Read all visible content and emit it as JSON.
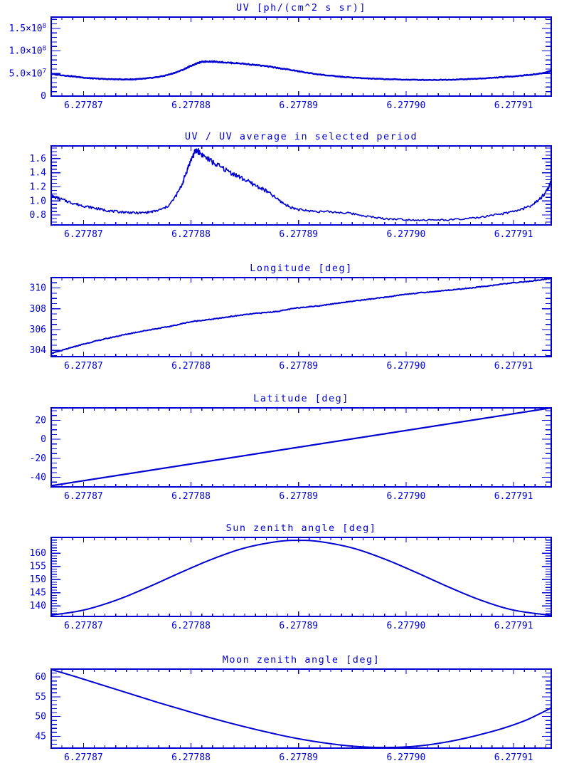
{
  "style": {
    "accent": "#0000d2",
    "background": "#ffffff"
  },
  "chart_data": [
    {
      "type": "line",
      "id": "uv",
      "title": "UV [ph/(cm^2 s sr)]",
      "xlabel": "",
      "ylabel": "",
      "grid": false,
      "legend": "none",
      "xlim": [
        6.277867,
        6.2779135
      ],
      "ylim": [
        0,
        175000000
      ],
      "x_tick_labels": [
        "6.27787",
        "6.27788",
        "6.27789",
        "6.27790",
        "6.27791"
      ],
      "x_tick_values": [
        6.27787,
        6.27788,
        6.27789,
        6.2779,
        6.27791
      ],
      "x_minor_step": 1e-06,
      "y_tick_labels": [
        "0",
        "5.0×10^7",
        "1.0×10^8",
        "1.5×10^8"
      ],
      "y_tick_values": [
        0,
        50000000,
        100000000,
        150000000
      ],
      "y_minor_step": 10000000,
      "line_width": 2.4,
      "noise": 1100000,
      "noise_prop": true,
      "seed": 3,
      "series": [
        {
          "name": "UV",
          "points": [
            [
              6.277867,
              49000000
            ],
            [
              6.2778685,
              45000000
            ],
            [
              6.27787,
              41000000
            ],
            [
              6.277871,
              39000000
            ],
            [
              6.2778725,
              37500000
            ],
            [
              6.277874,
              37000000
            ],
            [
              6.277875,
              37500000
            ],
            [
              6.277876,
              39500000
            ],
            [
              6.2778775,
              45000000
            ],
            [
              6.277879,
              56000000
            ],
            [
              6.27788,
              67000000
            ],
            [
              6.277881,
              75500000
            ],
            [
              6.277882,
              76500000
            ],
            [
              6.2778835,
              74000000
            ],
            [
              6.277885,
              71500000
            ],
            [
              6.277887,
              66000000
            ],
            [
              6.277889,
              59000000
            ],
            [
              6.277891,
              51000000
            ],
            [
              6.277893,
              45000000
            ],
            [
              6.277895,
              41000000
            ],
            [
              6.277897,
              38500000
            ],
            [
              6.277899,
              37000000
            ],
            [
              6.277901,
              36000000
            ],
            [
              6.277903,
              36000000
            ],
            [
              6.277905,
              37000000
            ],
            [
              6.277907,
              39000000
            ],
            [
              6.277909,
              42000000
            ],
            [
              6.277911,
              46000000
            ],
            [
              6.2779125,
              50000000
            ],
            [
              6.2779135,
              56000000
            ]
          ]
        }
      ]
    },
    {
      "type": "line",
      "id": "uv_ratio",
      "title": "UV / UV average in selected period",
      "xlabel": "",
      "ylabel": "",
      "grid": false,
      "legend": "none",
      "xlim": [
        6.277867,
        6.2779135
      ],
      "ylim": [
        0.66,
        1.78
      ],
      "x_tick_labels": [
        "6.27787",
        "6.27788",
        "6.27789",
        "6.27790",
        "6.27791"
      ],
      "x_tick_values": [
        6.27787,
        6.27788,
        6.27789,
        6.2779,
        6.27791
      ],
      "x_minor_step": 1e-06,
      "y_tick_labels": [
        "0.8",
        "1.0",
        "1.2",
        "1.4",
        "1.6"
      ],
      "y_tick_values": [
        0.8,
        1.0,
        1.2,
        1.4,
        1.6
      ],
      "y_minor_step": 0.05,
      "line_width": 1.6,
      "noise": 0.024,
      "noise_prop": true,
      "seed": 7,
      "series": [
        {
          "name": "UV ratio",
          "points": [
            [
              6.277867,
              1.07
            ],
            [
              6.277868,
              1.02
            ],
            [
              6.277869,
              0.97
            ],
            [
              6.27787,
              0.93
            ],
            [
              6.277871,
              0.9
            ],
            [
              6.277872,
              0.87
            ],
            [
              6.277873,
              0.85
            ],
            [
              6.277874,
              0.84
            ],
            [
              6.277875,
              0.83
            ],
            [
              6.277876,
              0.84
            ],
            [
              6.277877,
              0.87
            ],
            [
              6.277878,
              0.95
            ],
            [
              6.277879,
              1.18
            ],
            [
              6.2778795,
              1.38
            ],
            [
              6.27788,
              1.58
            ],
            [
              6.2778805,
              1.71
            ],
            [
              6.277881,
              1.66
            ],
            [
              6.277882,
              1.55
            ],
            [
              6.277883,
              1.46
            ],
            [
              6.277884,
              1.38
            ],
            [
              6.277885,
              1.3
            ],
            [
              6.277886,
              1.22
            ],
            [
              6.277887,
              1.14
            ],
            [
              6.277888,
              1.03
            ],
            [
              6.277889,
              0.93
            ],
            [
              6.27789,
              0.88
            ],
            [
              6.277891,
              0.86
            ],
            [
              6.277892,
              0.85
            ],
            [
              6.2778935,
              0.84
            ],
            [
              6.277895,
              0.82
            ],
            [
              6.2778965,
              0.78
            ],
            [
              6.277898,
              0.75
            ],
            [
              6.2778995,
              0.74
            ],
            [
              6.277901,
              0.73
            ],
            [
              6.277903,
              0.73
            ],
            [
              6.277905,
              0.74
            ],
            [
              6.277907,
              0.77
            ],
            [
              6.277909,
              0.82
            ],
            [
              6.2779105,
              0.87
            ],
            [
              6.277912,
              0.97
            ],
            [
              6.277913,
              1.13
            ],
            [
              6.2779135,
              1.28
            ]
          ]
        }
      ]
    },
    {
      "type": "line",
      "id": "longitude",
      "title": "Longitude [deg]",
      "xlabel": "",
      "ylabel": "",
      "grid": false,
      "legend": "none",
      "xlim": [
        6.277867,
        6.2779135
      ],
      "ylim": [
        303.4,
        311.0
      ],
      "x_tick_labels": [
        "6.27787",
        "6.27788",
        "6.27789",
        "6.27790",
        "6.27791"
      ],
      "x_tick_values": [
        6.27787,
        6.27788,
        6.27789,
        6.2779,
        6.27791
      ],
      "x_minor_step": 1e-06,
      "y_tick_labels": [
        "304",
        "306",
        "308",
        "310"
      ],
      "y_tick_values": [
        304,
        306,
        308,
        310
      ],
      "y_minor_step": 0.5,
      "line_width": 2,
      "noise": 0.04,
      "noise_prop": false,
      "seed": 5,
      "series": [
        {
          "name": "Longitude",
          "points": [
            [
              6.277867,
              303.7
            ],
            [
              6.2778685,
              304.15
            ],
            [
              6.27787,
              304.6
            ],
            [
              6.277872,
              305.1
            ],
            [
              6.277874,
              305.55
            ],
            [
              6.277876,
              305.95
            ],
            [
              6.277878,
              306.3
            ],
            [
              6.27788,
              306.75
            ],
            [
              6.277882,
              307.0
            ],
            [
              6.277884,
              307.3
            ],
            [
              6.277886,
              307.55
            ],
            [
              6.277888,
              307.75
            ],
            [
              6.27789,
              308.1
            ],
            [
              6.277892,
              308.3
            ],
            [
              6.277894,
              308.6
            ],
            [
              6.277896,
              308.85
            ],
            [
              6.277898,
              309.1
            ],
            [
              6.2779,
              309.4
            ],
            [
              6.277902,
              309.6
            ],
            [
              6.277904,
              309.8
            ],
            [
              6.277906,
              310.0
            ],
            [
              6.277908,
              310.25
            ],
            [
              6.27791,
              310.5
            ],
            [
              6.277912,
              310.7
            ],
            [
              6.2779135,
              310.95
            ]
          ]
        }
      ]
    },
    {
      "type": "line",
      "id": "latitude",
      "title": "Latitude [deg]",
      "xlabel": "",
      "ylabel": "",
      "grid": false,
      "legend": "none",
      "xlim": [
        6.277867,
        6.2779135
      ],
      "ylim": [
        -50,
        33
      ],
      "x_tick_labels": [
        "6.27787",
        "6.27788",
        "6.27789",
        "6.27790",
        "6.27791"
      ],
      "x_tick_values": [
        6.27787,
        6.27788,
        6.27789,
        6.2779,
        6.27791
      ],
      "x_minor_step": 1e-06,
      "y_tick_labels": [
        "-40",
        "-20",
        "0",
        "20"
      ],
      "y_tick_values": [
        -40,
        -20,
        0,
        20
      ],
      "y_minor_step": 5,
      "line_width": 2.2,
      "noise": 0,
      "noise_prop": false,
      "seed": 1,
      "series": [
        {
          "name": "Latitude",
          "points": [
            [
              6.277867,
              -48.8
            ],
            [
              6.2779135,
              33.0
            ]
          ]
        }
      ]
    },
    {
      "type": "line",
      "id": "sun_zenith",
      "title": "Sun zenith angle [deg]",
      "xlabel": "",
      "ylabel": "",
      "grid": false,
      "legend": "none",
      "xlim": [
        6.277867,
        6.2779135
      ],
      "ylim": [
        136,
        166
      ],
      "x_tick_labels": [
        "6.27787",
        "6.27788",
        "6.27789",
        "6.27790",
        "6.27791"
      ],
      "x_tick_values": [
        6.27787,
        6.27788,
        6.27789,
        6.2779,
        6.27791
      ],
      "x_minor_step": 1e-06,
      "y_tick_labels": [
        "140",
        "145",
        "150",
        "155",
        "160"
      ],
      "y_tick_values": [
        140,
        145,
        150,
        155,
        160
      ],
      "y_minor_step": 1,
      "line_width": 2,
      "noise": 0,
      "noise_prop": false,
      "seed": 1,
      "series": [
        {
          "name": "Sun zenith angle",
          "points": [
            [
              6.277867,
              136.5
            ],
            [
              6.27787,
              138.4
            ],
            [
              6.277873,
              142.1
            ],
            [
              6.277876,
              147.1
            ],
            [
              6.277879,
              152.6
            ],
            [
              6.277882,
              157.8
            ],
            [
              6.277885,
              162.0
            ],
            [
              6.277888,
              164.4
            ],
            [
              6.27789,
              164.9
            ],
            [
              6.277892,
              164.4
            ],
            [
              6.277895,
              162.0
            ],
            [
              6.277898,
              157.8
            ],
            [
              6.277901,
              152.6
            ],
            [
              6.277904,
              147.1
            ],
            [
              6.277907,
              142.1
            ],
            [
              6.27791,
              138.4
            ],
            [
              6.2779135,
              136.4
            ]
          ]
        }
      ]
    },
    {
      "type": "line",
      "id": "moon_zenith",
      "title": "Moon zenith angle [deg]",
      "xlabel": "",
      "ylabel": "",
      "grid": false,
      "legend": "none",
      "xlim": [
        6.277867,
        6.2779135
      ],
      "ylim": [
        42,
        62
      ],
      "x_tick_labels": [
        "6.27787",
        "6.27788",
        "6.27789",
        "6.27790",
        "6.27791"
      ],
      "x_tick_values": [
        6.27787,
        6.27788,
        6.27789,
        6.2779,
        6.27791
      ],
      "x_minor_step": 1e-06,
      "y_tick_labels": [
        "45",
        "50",
        "55",
        "60"
      ],
      "y_tick_values": [
        45,
        50,
        55,
        60
      ],
      "y_minor_step": 1,
      "line_width": 2,
      "noise": 0,
      "noise_prop": false,
      "seed": 1,
      "series": [
        {
          "name": "Moon zenith angle",
          "points": [
            [
              6.277867,
              61.9
            ],
            [
              6.277869,
              60.3
            ],
            [
              6.277871,
              58.6
            ],
            [
              6.277873,
              56.9
            ],
            [
              6.277875,
              55.2
            ],
            [
              6.277877,
              53.5
            ],
            [
              6.277879,
              51.9
            ],
            [
              6.277881,
              50.3
            ],
            [
              6.277883,
              48.8
            ],
            [
              6.277885,
              47.4
            ],
            [
              6.277887,
              46.1
            ],
            [
              6.277889,
              44.9
            ],
            [
              6.277891,
              43.9
            ],
            [
              6.277893,
              43.1
            ],
            [
              6.277895,
              42.5
            ],
            [
              6.277897,
              42.2
            ],
            [
              6.277899,
              42.2
            ],
            [
              6.277901,
              42.5
            ],
            [
              6.277903,
              43.2
            ],
            [
              6.277905,
              44.2
            ],
            [
              6.277907,
              45.5
            ],
            [
              6.277909,
              47.0
            ],
            [
              6.277911,
              48.9
            ],
            [
              6.2779125,
              50.8
            ],
            [
              6.2779135,
              52.2
            ]
          ]
        }
      ]
    }
  ]
}
